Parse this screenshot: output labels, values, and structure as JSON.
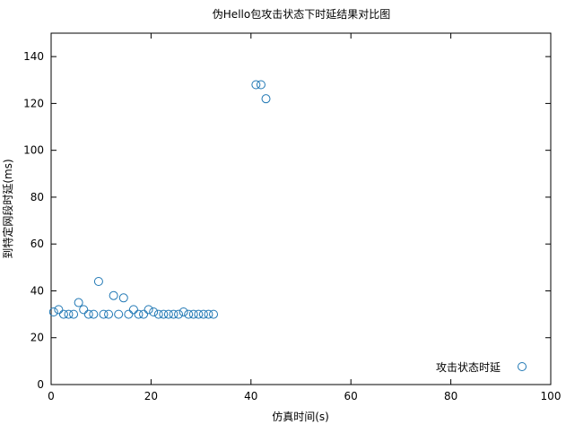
{
  "chart_data": {
    "type": "scatter",
    "title": "伪Hello包攻击状态下时延结果对比图",
    "xlabel": "仿真时间(s)",
    "ylabel": "到特定网段时延(ms)",
    "xlim": [
      0,
      100
    ],
    "ylim": [
      0,
      150
    ],
    "xticks": [
      0,
      20,
      40,
      60,
      80,
      100
    ],
    "yticks": [
      0,
      20,
      40,
      60,
      80,
      100,
      120,
      140
    ],
    "grid": false,
    "legend_position": "bottom-right",
    "series": [
      {
        "name": "攻击状态时延",
        "color": "#1f77b4",
        "marker": "open-circle",
        "points": [
          [
            0.5,
            31
          ],
          [
            1.5,
            32
          ],
          [
            2.5,
            30
          ],
          [
            3.5,
            30
          ],
          [
            4.5,
            30
          ],
          [
            5.5,
            35
          ],
          [
            6.5,
            32
          ],
          [
            7.5,
            30
          ],
          [
            8.5,
            30
          ],
          [
            9.5,
            44
          ],
          [
            10.5,
            30
          ],
          [
            11.5,
            30
          ],
          [
            12.5,
            38
          ],
          [
            13.5,
            30
          ],
          [
            14.5,
            37
          ],
          [
            15.5,
            30
          ],
          [
            16.5,
            32
          ],
          [
            17.5,
            30
          ],
          [
            18.5,
            30
          ],
          [
            19.5,
            32
          ],
          [
            20.5,
            31
          ],
          [
            21.5,
            30
          ],
          [
            22.5,
            30
          ],
          [
            23.5,
            30
          ],
          [
            24.5,
            30
          ],
          [
            25.5,
            30
          ],
          [
            26.5,
            31
          ],
          [
            27.5,
            30
          ],
          [
            28.5,
            30
          ],
          [
            29.5,
            30
          ],
          [
            30.5,
            30
          ],
          [
            31.5,
            30
          ],
          [
            32.5,
            30
          ],
          [
            41,
            128
          ],
          [
            42,
            128
          ],
          [
            43,
            122
          ]
        ]
      }
    ]
  }
}
